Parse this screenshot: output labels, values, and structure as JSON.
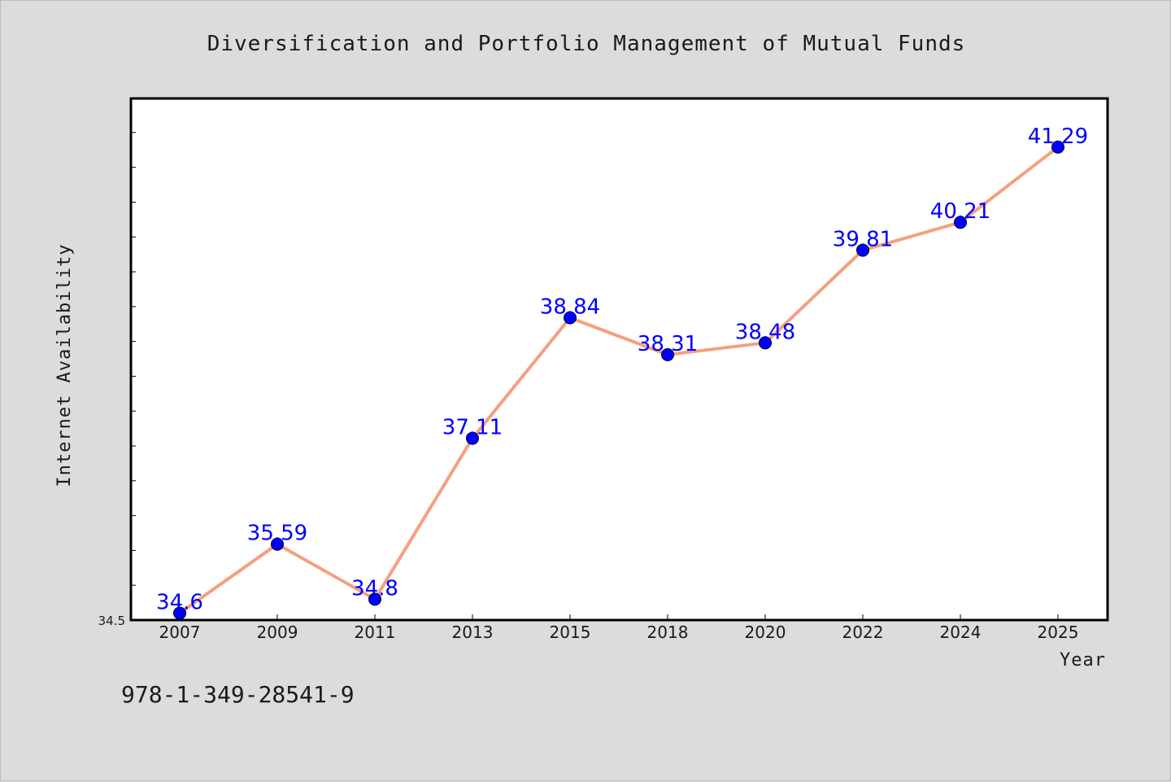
{
  "chart_data": {
    "type": "line",
    "title": "Diversification and Portfolio Management of Mutual Funds",
    "xlabel": "Year",
    "ylabel": "Internet Availability",
    "categories": [
      "2007",
      "2009",
      "2011",
      "2013",
      "2015",
      "2018",
      "2020",
      "2022",
      "2024",
      "2025"
    ],
    "values": [
      34.6,
      35.59,
      34.8,
      37.11,
      38.84,
      38.31,
      38.48,
      39.81,
      40.21,
      41.29
    ],
    "value_labels": [
      "34.6",
      "35.59",
      "34.8",
      "37.11",
      "38.84",
      "38.31",
      "38.48",
      "39.81",
      "40.21",
      "41.29"
    ],
    "ylim": [
      34.5,
      42.0
    ],
    "y_min_label": "34.5",
    "minor_tick_step": 0.5,
    "grid": false,
    "legend": "none",
    "line_color": "#f4a07f",
    "marker_color": "#0000ff",
    "label_color": "#0000ff"
  },
  "footer": {
    "code": "978-1-349-28541-9"
  }
}
